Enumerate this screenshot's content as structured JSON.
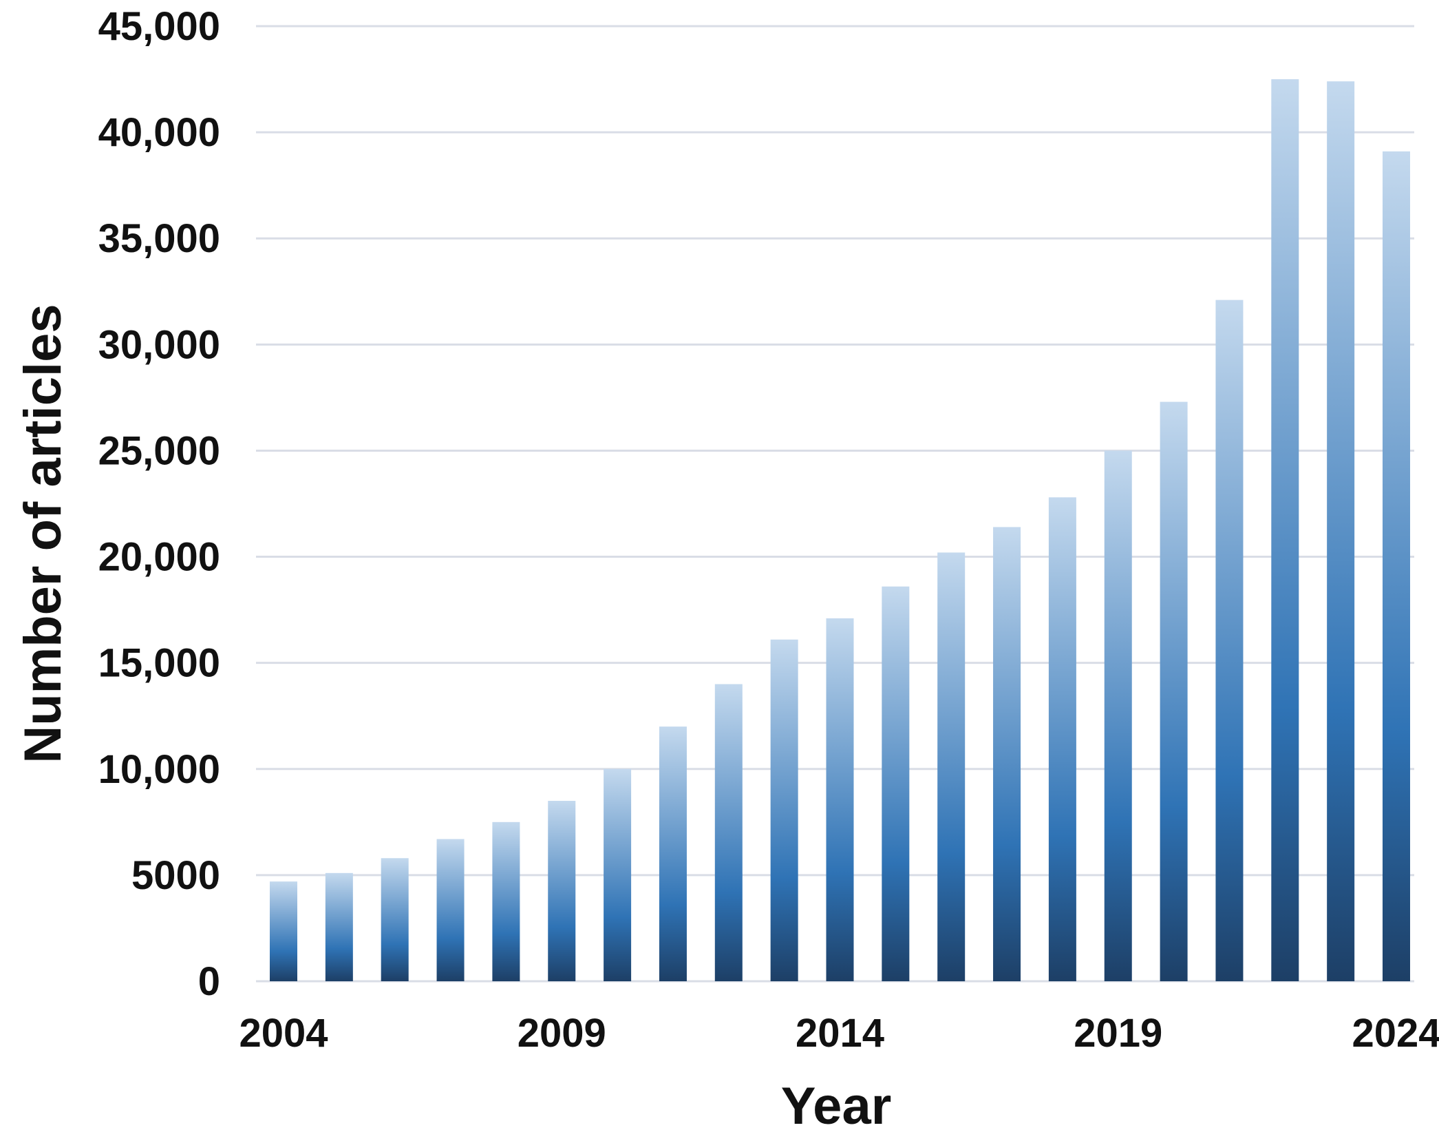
{
  "chart_data": {
    "type": "bar",
    "title": "",
    "xlabel": "Year",
    "ylabel": "Number of articles",
    "categories": [
      "2004",
      "2005",
      "2006",
      "2007",
      "2008",
      "2009",
      "2010",
      "2011",
      "2012",
      "2013",
      "2014",
      "2015",
      "2016",
      "2017",
      "2018",
      "2019",
      "2020",
      "2021",
      "2022",
      "2023",
      "2024"
    ],
    "x_tick_labels": [
      "2004",
      "2009",
      "2014",
      "2019",
      "2024"
    ],
    "values": [
      4700,
      5100,
      5800,
      6700,
      7500,
      8500,
      10000,
      12000,
      14000,
      16100,
      17100,
      18600,
      20200,
      21400,
      22800,
      25000,
      27300,
      32100,
      42500,
      42400,
      39100
    ],
    "y_ticks": [
      0,
      5000,
      10000,
      15000,
      20000,
      25000,
      30000,
      35000,
      40000,
      45000
    ],
    "y_tick_labels": [
      "0",
      "5000",
      "10,000",
      "15,000",
      "20,000",
      "25,000",
      "30,000",
      "35,000",
      "40,000",
      "45,000"
    ],
    "ylim": [
      0,
      45000
    ],
    "grid": true,
    "legend": "none",
    "colors": {
      "bar_top": "#c4d9ee",
      "bar_mid": "#2f73b5",
      "bar_bottom": "#1d3f66",
      "gridline": "#d9dde6",
      "text": "#111111"
    }
  }
}
